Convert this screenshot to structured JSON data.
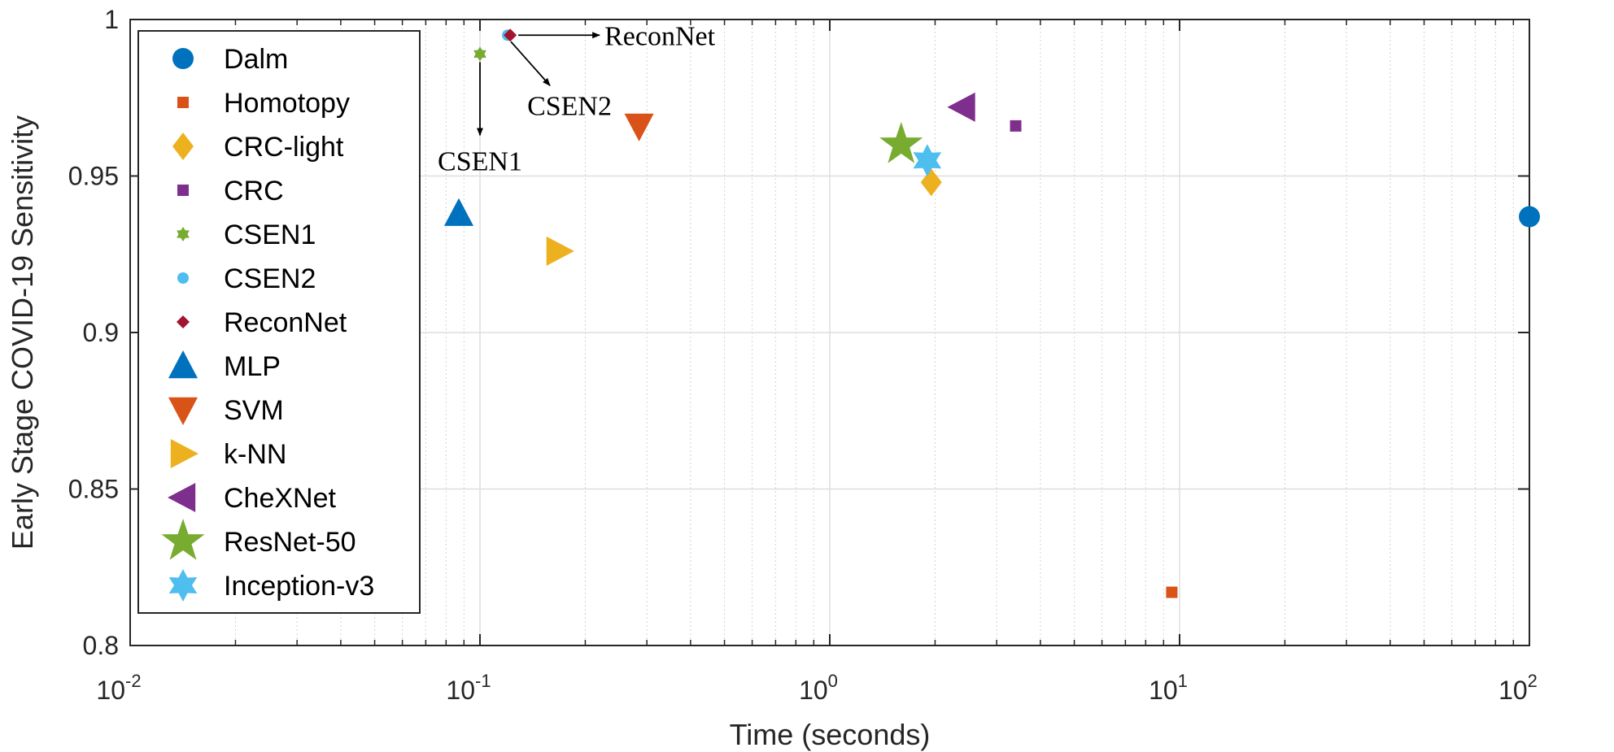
{
  "chart_data": {
    "type": "scatter",
    "title": "",
    "xlabel": "Time (seconds)",
    "ylabel": "Early Stage COVID-19 Sensitivity",
    "xscale": "log",
    "xlim": [
      0.01,
      100
    ],
    "ylim": [
      0.8,
      1.0
    ],
    "grid": true,
    "minor_grid_x": true,
    "legend_position": "top-left",
    "x_ticks": [
      {
        "value": 0.01,
        "base": "10",
        "exp": "-2"
      },
      {
        "value": 0.1,
        "base": "10",
        "exp": "-1"
      },
      {
        "value": 1,
        "base": "10",
        "exp": "0"
      },
      {
        "value": 10,
        "base": "10",
        "exp": "1"
      },
      {
        "value": 100,
        "base": "10",
        "exp": "2"
      }
    ],
    "y_ticks": [
      {
        "value": 0.8,
        "label": "0.8"
      },
      {
        "value": 0.85,
        "label": "0.85"
      },
      {
        "value": 0.9,
        "label": "0.9"
      },
      {
        "value": 0.95,
        "label": "0.95"
      },
      {
        "value": 1.0,
        "label": "1"
      }
    ],
    "series": [
      {
        "name": "Dalm",
        "marker": "circle",
        "color": "#0072BD",
        "x": 100,
        "y": 0.937
      },
      {
        "name": "Homotopy",
        "marker": "square",
        "color": "#D95319",
        "x": 9.5,
        "y": 0.817
      },
      {
        "name": "CRC-light",
        "marker": "diamond",
        "color": "#EDB120",
        "x": 1.95,
        "y": 0.948
      },
      {
        "name": "CRC",
        "marker": "square",
        "color": "#7E2F8E",
        "x": 3.4,
        "y": 0.966
      },
      {
        "name": "CSEN1",
        "marker": "hexagram-small",
        "color": "#77AC30",
        "x": 0.1,
        "y": 0.989
      },
      {
        "name": "CSEN2",
        "marker": "circle-small",
        "color": "#4DBEEE",
        "x": 0.12,
        "y": 0.995
      },
      {
        "name": "ReconNet",
        "marker": "diamond-small",
        "color": "#A2142F",
        "x": 0.122,
        "y": 0.995
      },
      {
        "name": "MLP",
        "marker": "triangle-up",
        "color": "#0072BD",
        "x": 0.087,
        "y": 0.938
      },
      {
        "name": "SVM",
        "marker": "triangle-down",
        "color": "#D95319",
        "x": 0.285,
        "y": 0.966
      },
      {
        "name": "k-NN",
        "marker": "triangle-right",
        "color": "#EDB120",
        "x": 0.168,
        "y": 0.926
      },
      {
        "name": "CheXNet",
        "marker": "triangle-left",
        "color": "#7E2F8E",
        "x": 2.4,
        "y": 0.972
      },
      {
        "name": "ResNet-50",
        "marker": "star5",
        "color": "#77AC30",
        "x": 1.6,
        "y": 0.96
      },
      {
        "name": "Inception-v3",
        "marker": "star6",
        "color": "#4DBEEE",
        "x": 1.9,
        "y": 0.955
      }
    ],
    "annotations": [
      {
        "text": "ReconNet",
        "arrow": "right"
      },
      {
        "text": "CSEN2",
        "arrow": "down-right"
      },
      {
        "text": "CSEN1",
        "arrow": "down"
      }
    ]
  }
}
